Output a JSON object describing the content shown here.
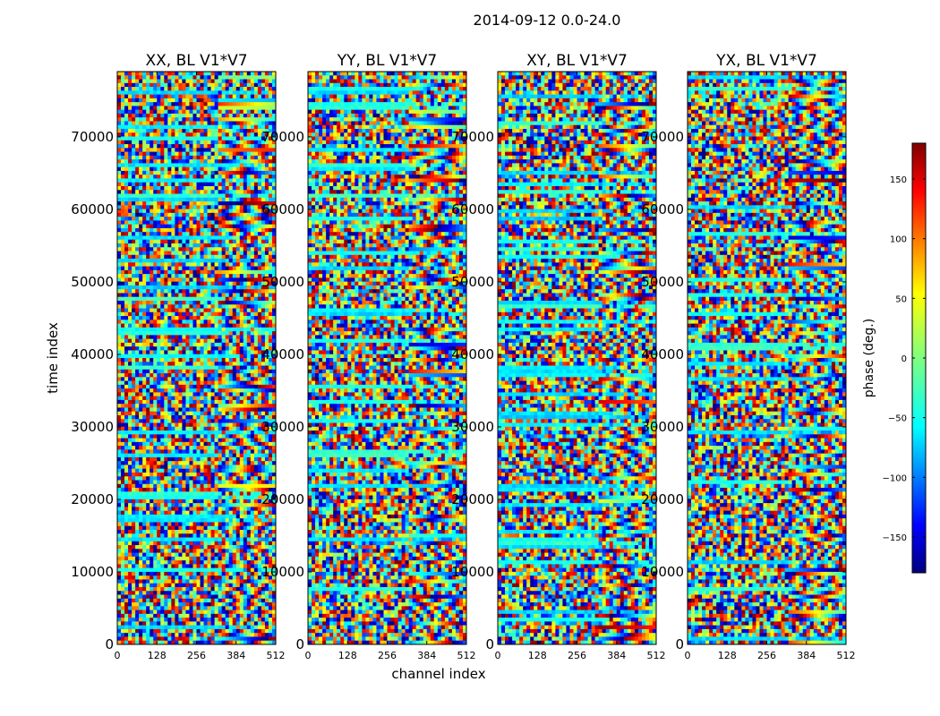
{
  "chart_data": {
    "type": "heatmap",
    "suptitle": "2014-09-12 0.0-24.0",
    "xlabel": "channel index",
    "ylabel": "time index",
    "xlim": [
      0,
      512
    ],
    "ylim": [
      0,
      79000
    ],
    "x_ticks": [
      0,
      128,
      256,
      384,
      512
    ],
    "y_ticks": [
      0,
      10000,
      20000,
      30000,
      40000,
      50000,
      60000,
      70000
    ],
    "panels": [
      {
        "title": "XX, BL V1*V7"
      },
      {
        "title": "YY, BL V1*V7"
      },
      {
        "title": "XY, BL V1*V7"
      },
      {
        "title": "YX, BL V1*V7"
      }
    ],
    "colorbar": {
      "label": "phase (deg.)",
      "range": [
        -180,
        180
      ],
      "ticks": [
        150,
        100,
        50,
        0,
        -50,
        -100,
        -150
      ],
      "tick_labels": [
        "150",
        "100",
        "50",
        "0",
        "−50",
        "−100",
        "−150"
      ],
      "colormap": "jet"
    }
  }
}
